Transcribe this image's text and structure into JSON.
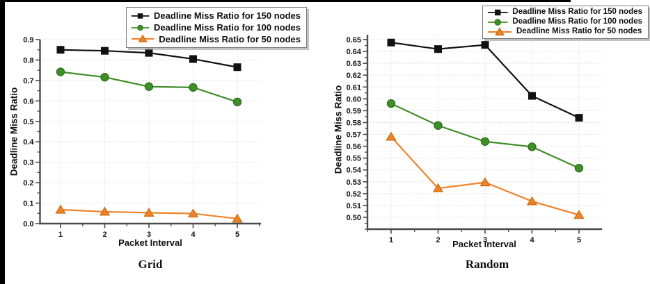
{
  "page": {
    "background": "#ffffff",
    "top_bar_color": "#000000",
    "left_bar_color": "#000000",
    "text_color": "#111111",
    "axis_color": "#4a4a4a",
    "grid_color": "#d7d7d7"
  },
  "chart_data": [
    {
      "type": "line",
      "title": "Grid",
      "xlabel": "Packet Interval",
      "ylabel": "Deadline Miss Ratio",
      "grid": "dotted",
      "legend_position": "top-right",
      "x": [
        1,
        2,
        3,
        4,
        5
      ],
      "xlim": [
        0.53,
        5.55
      ],
      "ylim": [
        0.0,
        0.9
      ],
      "xticks": {
        "minor_step": 0.5
      },
      "yticks": {
        "min": 0.0,
        "max": 0.9,
        "step": 0.1,
        "minor_step": 0.05,
        "decimals": 1
      },
      "series": [
        {
          "name": "Deadline Miss Ratio for 150 nodes",
          "marker": "square",
          "color": "#111111",
          "edge": "#111111",
          "values": [
            0.85,
            0.845,
            0.835,
            0.805,
            0.765
          ]
        },
        {
          "name": "Deadline Miss Ratio for 100 nodes",
          "marker": "circle",
          "color": "#3f8f29",
          "edge": "#2c6b1a",
          "values": [
            0.742,
            0.716,
            0.67,
            0.666,
            0.595
          ]
        },
        {
          "name": "Deadline Miss Ratio for 50 nodes",
          "marker": "triangle",
          "color": "#ef8227",
          "edge": "#c96d12",
          "values": [
            0.068,
            0.058,
            0.053,
            0.049,
            0.024
          ]
        }
      ]
    },
    {
      "type": "line",
      "title": "Random",
      "xlabel": "Packet Interval",
      "ylabel": "Deadline Miss Ratio",
      "grid": "dotted",
      "legend_position": "top-right",
      "x": [
        1,
        2,
        3,
        4,
        5
      ],
      "xlim": [
        0.496,
        5.49
      ],
      "ylim": [
        0.49,
        0.654
      ],
      "xticks": {
        "minor_step": 0.5
      },
      "yticks": {
        "min": 0.5,
        "max": 0.65,
        "step": 0.01,
        "minor_step": 0.005,
        "decimals": 2
      },
      "series": [
        {
          "name": "Deadline Miss Ratio for 150 nodes",
          "marker": "square",
          "color": "#111111",
          "edge": "#111111",
          "values": [
            0.6475,
            0.642,
            0.6455,
            0.6025,
            0.584
          ]
        },
        {
          "name": "Deadline Miss Ratio for 100 nodes",
          "marker": "circle",
          "color": "#3f8f29",
          "edge": "#2c6b1a",
          "values": [
            0.596,
            0.5775,
            0.564,
            0.5595,
            0.5415
          ]
        },
        {
          "name": "Deadline Miss Ratio for 50 nodes",
          "marker": "triangle",
          "color": "#ef8227",
          "edge": "#c96d12",
          "values": [
            0.568,
            0.5245,
            0.5295,
            0.5135,
            0.502
          ]
        }
      ]
    }
  ]
}
